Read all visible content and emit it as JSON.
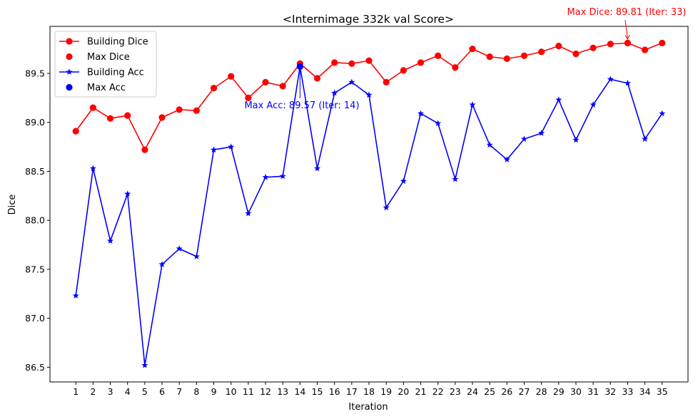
{
  "chart_data": {
    "type": "line",
    "title": "<Internimage 332k val Score>",
    "xlabel": "Iteration",
    "ylabel": "Dice",
    "x": [
      1,
      2,
      3,
      4,
      5,
      6,
      7,
      8,
      9,
      10,
      11,
      12,
      13,
      14,
      15,
      16,
      17,
      18,
      19,
      20,
      21,
      22,
      23,
      24,
      25,
      26,
      27,
      28,
      29,
      30,
      31,
      32,
      33,
      34,
      35
    ],
    "xlim": [
      -0.5,
      36.5
    ],
    "ylim": [
      86.35,
      89.98
    ],
    "yticks": [
      "86.5",
      "87.0",
      "87.5",
      "88.0",
      "88.5",
      "89.0",
      "89.5"
    ],
    "grid": false,
    "legend_position": "top-left",
    "series": [
      {
        "name": "Building Dice",
        "color": "#ff0000",
        "marker": "circle",
        "values": [
          88.91,
          89.15,
          89.04,
          89.07,
          88.72,
          89.05,
          89.13,
          89.12,
          89.35,
          89.47,
          89.25,
          89.41,
          89.37,
          89.6,
          89.45,
          89.61,
          89.6,
          89.63,
          89.41,
          89.53,
          89.61,
          89.68,
          89.56,
          89.75,
          89.67,
          89.65,
          89.68,
          89.72,
          89.78,
          89.7,
          89.76,
          89.8,
          89.81,
          89.74,
          89.81
        ]
      },
      {
        "name": "Building Acc",
        "color": "#0000ff",
        "marker": "star",
        "values": [
          87.23,
          88.53,
          87.79,
          88.27,
          86.52,
          87.55,
          87.71,
          87.63,
          88.72,
          88.75,
          88.07,
          88.44,
          88.45,
          89.57,
          88.53,
          89.3,
          89.41,
          89.28,
          88.13,
          88.4,
          89.09,
          88.99,
          88.42,
          89.18,
          88.77,
          88.62,
          88.83,
          88.89,
          89.23,
          88.82,
          89.18,
          89.44,
          89.4,
          88.83,
          89.09
        ]
      }
    ],
    "max_points": [
      {
        "name": "Max Dice",
        "color": "#ff0000",
        "x": 33,
        "y": 89.81
      },
      {
        "name": "Max Acc",
        "color": "#0000ff",
        "x": 14,
        "y": 89.57
      }
    ],
    "annotations": [
      {
        "text": "Max Dice: 89.81 (Iter: 33)",
        "color": "#ff0000"
      },
      {
        "text": "Max Acc: 89.57 (Iter: 14)",
        "color": "#0000ff"
      }
    ],
    "legend": [
      "Building Dice",
      "Max Dice",
      "Building Acc",
      "Max Acc"
    ]
  }
}
